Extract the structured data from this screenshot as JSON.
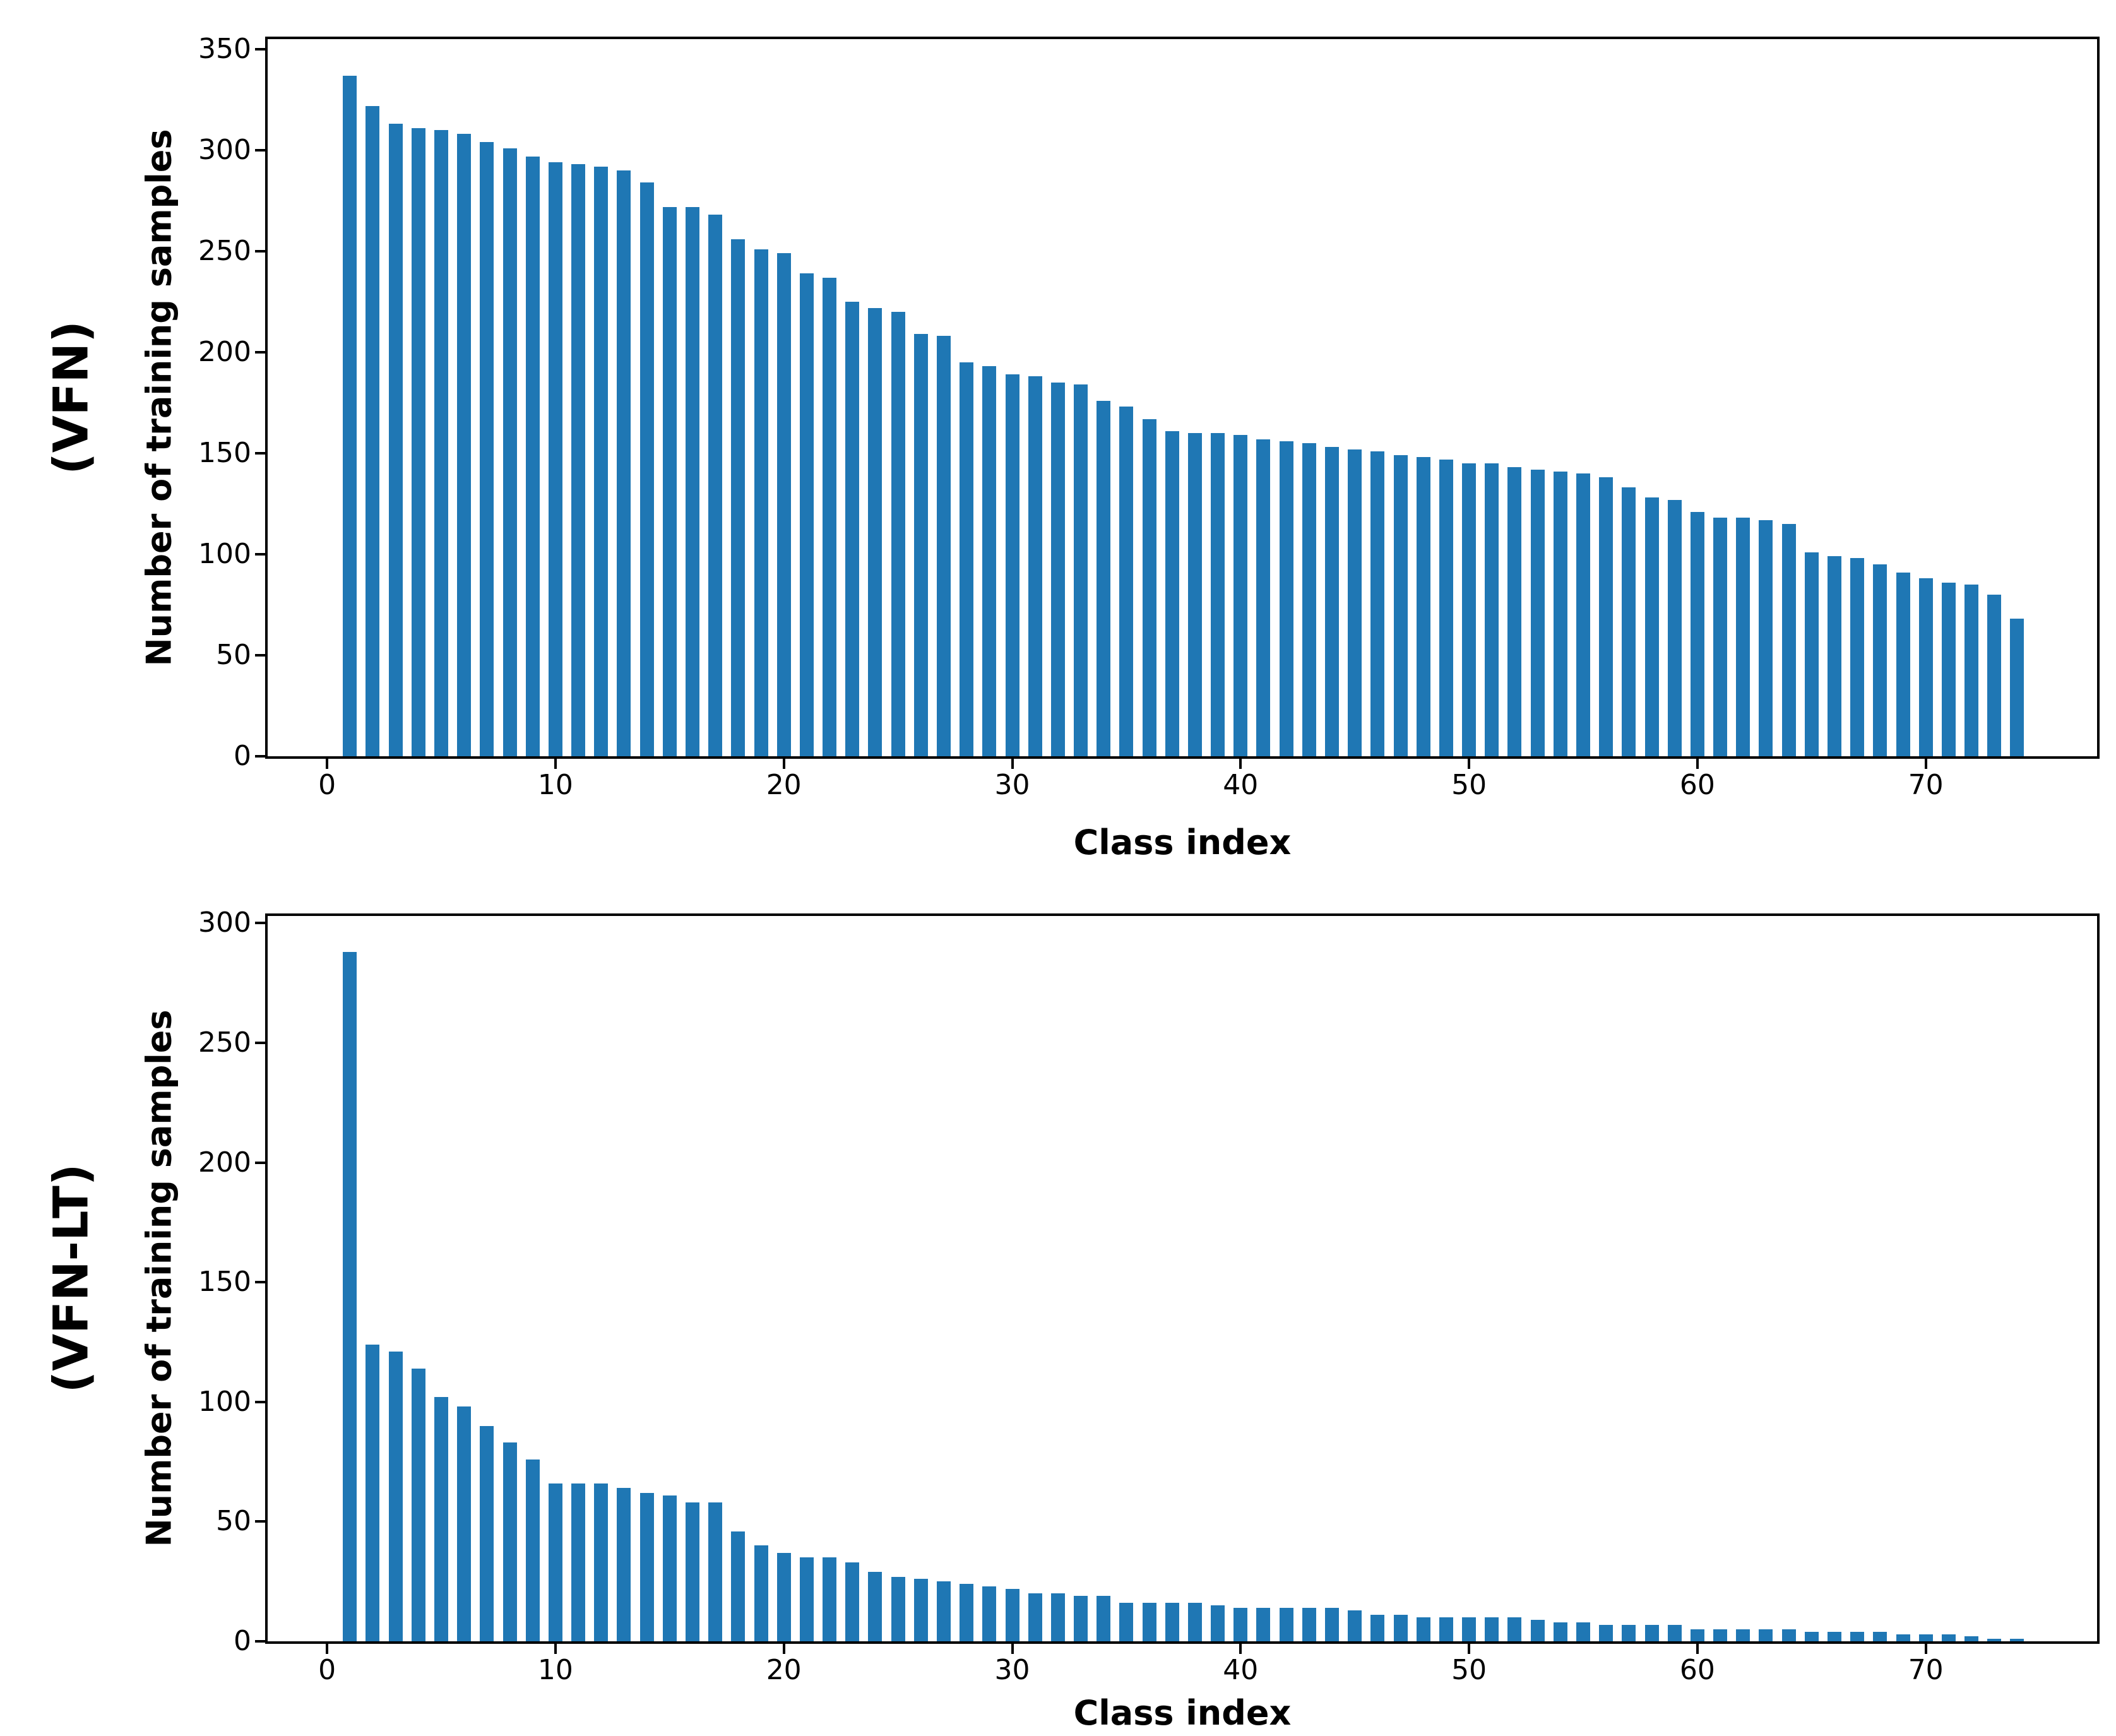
{
  "figure": {
    "background": "#ffffff",
    "bar_color": "#1f77b4",
    "axis_color": "#000000"
  },
  "chart_data": [
    {
      "type": "bar",
      "panel_label": "(VFN)",
      "xlabel": "Class index",
      "ylabel": "Number of training samples",
      "bar_color": "#1f77b4",
      "grid": false,
      "legend": null,
      "xlim": [
        -2.6,
        77.5
      ],
      "ylim": [
        0,
        355
      ],
      "x_ticks": [
        0,
        10,
        20,
        30,
        40,
        50,
        60,
        70
      ],
      "y_ticks": [
        0,
        50,
        100,
        150,
        200,
        250,
        300,
        350
      ],
      "x": [
        1,
        2,
        3,
        4,
        5,
        6,
        7,
        8,
        9,
        10,
        11,
        12,
        13,
        14,
        15,
        16,
        17,
        18,
        19,
        20,
        21,
        22,
        23,
        24,
        25,
        26,
        27,
        28,
        29,
        30,
        31,
        32,
        33,
        34,
        35,
        36,
        37,
        38,
        39,
        40,
        41,
        42,
        43,
        44,
        45,
        46,
        47,
        48,
        49,
        50,
        51,
        52,
        53,
        54,
        55,
        56,
        57,
        58,
        59,
        60,
        61,
        62,
        63,
        64,
        65,
        66,
        67,
        68,
        69,
        70,
        71,
        72,
        73,
        74
      ],
      "values": [
        337,
        322,
        313,
        311,
        310,
        308,
        304,
        301,
        297,
        294,
        293,
        292,
        290,
        284,
        272,
        272,
        268,
        256,
        251,
        249,
        239,
        237,
        225,
        222,
        220,
        209,
        208,
        195,
        193,
        189,
        188,
        185,
        184,
        176,
        173,
        167,
        161,
        160,
        160,
        159,
        157,
        156,
        155,
        153,
        152,
        151,
        149,
        148,
        147,
        145,
        145,
        143,
        142,
        141,
        140,
        138,
        133,
        128,
        127,
        121,
        118,
        118,
        117,
        115,
        101,
        99,
        98,
        95,
        91,
        88,
        86,
        85,
        80,
        68
      ]
    },
    {
      "type": "bar",
      "panel_label": "(VFN-LT)",
      "xlabel": "Class index",
      "ylabel": "Number of training samples",
      "bar_color": "#1f77b4",
      "grid": false,
      "legend": null,
      "xlim": [
        -2.6,
        77.5
      ],
      "ylim": [
        0,
        303
      ],
      "x_ticks": [
        0,
        10,
        20,
        30,
        40,
        50,
        60,
        70
      ],
      "y_ticks": [
        0,
        50,
        100,
        150,
        200,
        250,
        300
      ],
      "x": [
        1,
        2,
        3,
        4,
        5,
        6,
        7,
        8,
        9,
        10,
        11,
        12,
        13,
        14,
        15,
        16,
        17,
        18,
        19,
        20,
        21,
        22,
        23,
        24,
        25,
        26,
        27,
        28,
        29,
        30,
        31,
        32,
        33,
        34,
        35,
        36,
        37,
        38,
        39,
        40,
        41,
        42,
        43,
        44,
        45,
        46,
        47,
        48,
        49,
        50,
        51,
        52,
        53,
        54,
        55,
        56,
        57,
        58,
        59,
        60,
        61,
        62,
        63,
        64,
        65,
        66,
        67,
        68,
        69,
        70,
        71,
        72,
        73,
        74
      ],
      "values": [
        288,
        124,
        121,
        114,
        102,
        98,
        90,
        83,
        76,
        66,
        66,
        66,
        64,
        62,
        61,
        58,
        58,
        46,
        40,
        37,
        35,
        35,
        33,
        29,
        27,
        26,
        25,
        24,
        23,
        22,
        20,
        20,
        19,
        19,
        16,
        16,
        16,
        16,
        15,
        14,
        14,
        14,
        14,
        14,
        13,
        11,
        11,
        10,
        10,
        10,
        10,
        10,
        9,
        8,
        8,
        7,
        7,
        7,
        7,
        5,
        5,
        5,
        5,
        5,
        4,
        4,
        4,
        4,
        3,
        3,
        3,
        2,
        1,
        1
      ]
    }
  ]
}
